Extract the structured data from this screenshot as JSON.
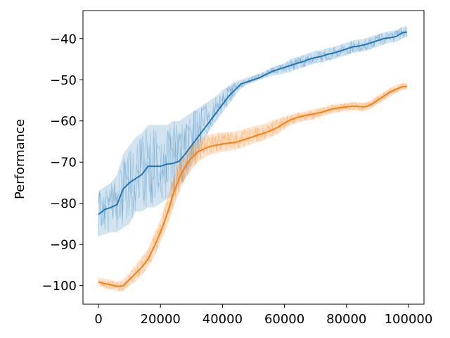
{
  "chart_data": {
    "type": "line",
    "title": "",
    "xlabel": "",
    "ylabel": "Performance",
    "xlim": [
      -5000,
      105000
    ],
    "ylim": [
      -104.5,
      -33.2
    ],
    "xticks": [
      0,
      20000,
      40000,
      60000,
      80000,
      100000
    ],
    "xtick_labels": [
      "0",
      "20000",
      "40000",
      "60000",
      "80000",
      "100000"
    ],
    "yticks": [
      -100,
      -90,
      -80,
      -70,
      -60,
      -50,
      -40
    ],
    "ytick_labels": [
      "−100",
      "−90",
      "−80",
      "−70",
      "−60",
      "−50",
      "−40"
    ],
    "grid": false,
    "legend": "none",
    "series": [
      {
        "color": "#1f77b4",
        "x": [
          0,
          2000,
          4000,
          6000,
          8000,
          10000,
          12000,
          14000,
          16000,
          18000,
          20000,
          22000,
          24000,
          26000,
          28000,
          30000,
          32000,
          34000,
          36000,
          38000,
          40000,
          42000,
          44000,
          46000,
          48000,
          50000,
          52000,
          54000,
          56000,
          58000,
          60000,
          62000,
          64000,
          66000,
          68000,
          70000,
          72000,
          74000,
          76000,
          78000,
          80000,
          82000,
          84000,
          86000,
          88000,
          90000,
          92000,
          94000,
          96000,
          98000,
          99500
        ],
        "y": [
          -82.7,
          -81.5,
          -81.0,
          -80.3,
          -76.5,
          -75.0,
          -74.0,
          -73.0,
          -71.0,
          -71.0,
          -71.0,
          -70.5,
          -70.3,
          -69.8,
          -68.0,
          -66.0,
          -64.0,
          -62.0,
          -60.0,
          -58.0,
          -56.0,
          -54.0,
          -52.5,
          -51.0,
          -50.5,
          -50.0,
          -49.5,
          -48.7,
          -48.0,
          -47.5,
          -47.0,
          -46.5,
          -46.0,
          -45.6,
          -45.0,
          -44.6,
          -44.3,
          -43.8,
          -43.5,
          -43.0,
          -42.5,
          -42.0,
          -41.8,
          -41.5,
          -41.0,
          -40.5,
          -40.0,
          -39.8,
          -39.5,
          -38.6,
          -38.4
        ],
        "lower": [
          -88.0,
          -87.5,
          -87.0,
          -87.0,
          -86.0,
          -85.0,
          -82.0,
          -82.0,
          -81.0,
          -81.0,
          -80.0,
          -79.0,
          -78.0,
          -76.0,
          -74.0,
          -71.0,
          -68.0,
          -65.0,
          -62.0,
          -60.0,
          -58.0,
          -56.0,
          -54.0,
          -52.0,
          -51.0,
          -50.5,
          -50.0,
          -49.5,
          -49.0,
          -48.8,
          -48.5,
          -48.0,
          -47.5,
          -47.0,
          -46.5,
          -46.0,
          -45.8,
          -45.3,
          -45.0,
          -44.5,
          -44.0,
          -43.5,
          -43.3,
          -43.0,
          -42.5,
          -42.0,
          -41.5,
          -41.0,
          -40.8,
          -40.0,
          -39.5
        ],
        "upper": [
          -77.0,
          -76.0,
          -75.0,
          -73.0,
          -68.0,
          -66.0,
          -64.0,
          -63.0,
          -61.0,
          -61.0,
          -61.0,
          -61.0,
          -60.0,
          -60.0,
          -59.0,
          -58.0,
          -57.0,
          -56.0,
          -55.0,
          -54.0,
          -52.5,
          -51.5,
          -50.5,
          -50.0,
          -49.5,
          -49.0,
          -48.5,
          -47.8,
          -47.0,
          -46.5,
          -46.0,
          -45.0,
          -44.5,
          -44.0,
          -43.5,
          -43.0,
          -42.8,
          -42.3,
          -42.0,
          -41.5,
          -41.0,
          -40.5,
          -40.2,
          -40.0,
          -39.5,
          -39.0,
          -38.5,
          -38.2,
          -38.0,
          -37.2,
          -37.0
        ]
      },
      {
        "color": "#ff7f0e",
        "x": [
          0,
          2000,
          4000,
          6000,
          8000,
          10000,
          12000,
          14000,
          16000,
          18000,
          20000,
          22000,
          24000,
          26000,
          28000,
          30000,
          32000,
          34000,
          36000,
          38000,
          40000,
          42000,
          44000,
          46000,
          48000,
          50000,
          52000,
          54000,
          56000,
          58000,
          60000,
          62000,
          64000,
          66000,
          68000,
          70000,
          72000,
          74000,
          76000,
          78000,
          80000,
          82000,
          84000,
          86000,
          88000,
          90000,
          92000,
          94000,
          96000,
          98000,
          99500
        ],
        "y": [
          -99.1,
          -99.5,
          -99.8,
          -100.2,
          -100.0,
          -98.5,
          -97.0,
          -95.5,
          -93.5,
          -90.5,
          -87.0,
          -83.0,
          -78.0,
          -74.0,
          -71.0,
          -69.0,
          -67.5,
          -66.8,
          -66.2,
          -65.9,
          -65.6,
          -65.4,
          -65.2,
          -64.8,
          -64.3,
          -63.8,
          -63.3,
          -62.8,
          -62.2,
          -61.5,
          -60.5,
          -59.7,
          -59.2,
          -58.8,
          -58.5,
          -58.2,
          -57.9,
          -57.4,
          -57.0,
          -56.8,
          -56.6,
          -56.4,
          -56.5,
          -56.6,
          -56.0,
          -55.0,
          -54.0,
          -53.0,
          -52.3,
          -51.7,
          -51.6
        ],
        "lower": [
          -100.0,
          -100.5,
          -101.0,
          -101.3,
          -101.3,
          -100.0,
          -99.0,
          -97.5,
          -95.5,
          -93.0,
          -89.5,
          -86.0,
          -81.5,
          -77.5,
          -74.0,
          -72.0,
          -70.0,
          -69.0,
          -68.2,
          -67.8,
          -67.5,
          -67.2,
          -67.0,
          -66.6,
          -66.0,
          -65.5,
          -65.0,
          -64.5,
          -63.8,
          -63.0,
          -62.0,
          -61.0,
          -60.5,
          -60.0,
          -59.8,
          -59.4,
          -59.0,
          -58.5,
          -58.0,
          -57.8,
          -57.6,
          -57.4,
          -57.5,
          -57.6,
          -57.0,
          -56.0,
          -55.0,
          -54.0,
          -53.2,
          -52.5,
          -52.4
        ],
        "upper": [
          -98.0,
          -98.3,
          -98.6,
          -99.0,
          -98.5,
          -97.0,
          -95.0,
          -93.0,
          -91.0,
          -87.5,
          -84.0,
          -79.0,
          -74.0,
          -70.0,
          -68.0,
          -66.0,
          -64.5,
          -63.8,
          -63.2,
          -63.0,
          -62.8,
          -62.7,
          -62.6,
          -62.2,
          -61.8,
          -61.3,
          -61.0,
          -60.6,
          -60.0,
          -59.5,
          -59.0,
          -58.5,
          -58.0,
          -57.8,
          -57.4,
          -57.0,
          -56.8,
          -56.3,
          -56.0,
          -55.8,
          -55.6,
          -55.4,
          -55.5,
          -55.6,
          -55.0,
          -54.0,
          -53.0,
          -52.0,
          -51.3,
          -50.8,
          -50.7
        ]
      }
    ]
  }
}
